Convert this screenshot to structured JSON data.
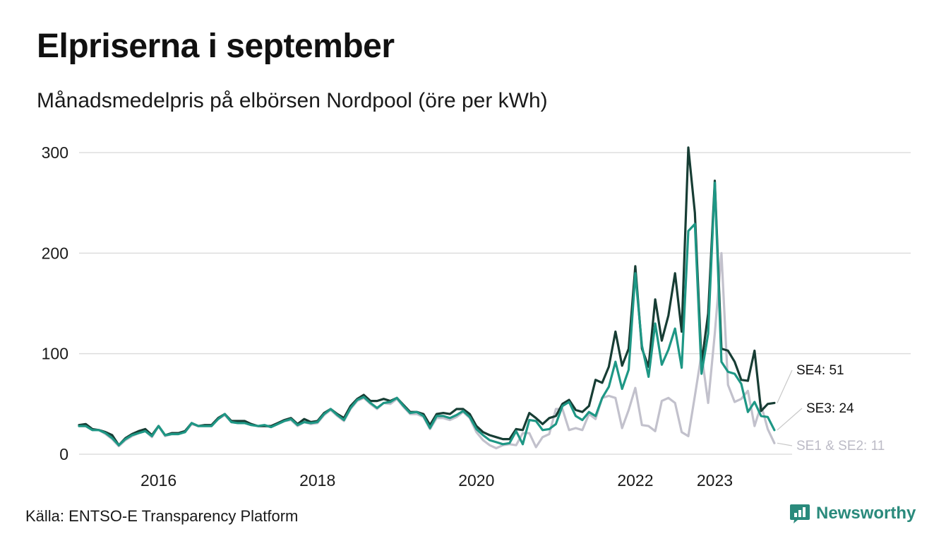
{
  "header": {
    "title": "Elpriserna i september",
    "subtitle": "Månadsmedelpris på elbörsen Nordpool (öre per kWh)"
  },
  "footer": {
    "source": "Källa: ENTSO-E Transparency Platform",
    "brand": "Newsworthy"
  },
  "colors": {
    "se4": "#173d34",
    "se3": "#1e9785",
    "se12": "#c2c1cc",
    "grid": "#dddddd",
    "brand": "#2a8a7c"
  },
  "chart_data": {
    "type": "line",
    "title": "Elpriserna i september",
    "subtitle": "Månadsmedelpris på elbörsen Nordpool (öre per kWh)",
    "xlabel": "",
    "ylabel": "",
    "ylim": [
      0,
      300
    ],
    "xlim": [
      "2015-01",
      "2023-09"
    ],
    "grid": true,
    "y_ticks": [
      0,
      100,
      200,
      300
    ],
    "x_ticks": [
      {
        "label": "2016",
        "month": "2016-01"
      },
      {
        "label": "2018",
        "month": "2018-01"
      },
      {
        "label": "2020",
        "month": "2020-01"
      },
      {
        "label": "2022",
        "month": "2022-01"
      },
      {
        "label": "2023",
        "month": "2023-01"
      }
    ],
    "x_start": "2015-01",
    "x_step": "1 month",
    "series": [
      {
        "name": "SE4",
        "end_label": "SE4: 51",
        "color": "#173d34",
        "values": [
          29,
          30,
          25,
          24,
          22,
          19,
          9,
          16,
          20,
          23,
          25,
          19,
          28,
          19,
          21,
          21,
          23,
          31,
          28,
          29,
          29,
          36,
          40,
          33,
          33,
          33,
          30,
          28,
          28,
          28,
          31,
          34,
          36,
          30,
          35,
          32,
          33,
          41,
          45,
          40,
          36,
          48,
          55,
          59,
          53,
          53,
          55,
          53,
          56,
          49,
          42,
          42,
          40,
          29,
          40,
          41,
          40,
          45,
          45,
          40,
          28,
          22,
          19,
          17,
          15,
          15,
          25,
          24,
          41,
          36,
          30,
          36,
          38,
          50,
          54,
          44,
          42,
          48,
          74,
          71,
          87,
          122,
          88,
          105,
          187,
          105,
          87,
          154,
          113,
          138,
          180,
          122,
          305,
          240,
          90,
          140,
          272,
          105,
          103,
          92,
          74,
          73,
          103,
          43,
          50,
          51
        ]
      },
      {
        "name": "SE3",
        "end_label": "SE3: 24",
        "color": "#1e9785",
        "values": [
          28,
          28,
          24,
          24,
          21,
          16,
          9,
          15,
          19,
          21,
          23,
          18,
          28,
          19,
          20,
          20,
          22,
          31,
          28,
          28,
          28,
          35,
          40,
          32,
          31,
          31,
          29,
          28,
          29,
          27,
          30,
          33,
          35,
          29,
          32,
          31,
          32,
          40,
          45,
          39,
          34,
          46,
          54,
          57,
          51,
          46,
          51,
          52,
          56,
          48,
          41,
          42,
          38,
          26,
          38,
          38,
          36,
          39,
          43,
          37,
          25,
          19,
          14,
          12,
          10,
          11,
          23,
          10,
          34,
          33,
          24,
          25,
          30,
          48,
          52,
          38,
          34,
          42,
          38,
          56,
          67,
          92,
          65,
          84,
          180,
          108,
          77,
          130,
          89,
          104,
          125,
          86,
          222,
          229,
          80,
          120,
          270,
          92,
          82,
          80,
          70,
          42,
          52,
          38,
          37,
          24
        ]
      },
      {
        "name": "SE1 & SE2",
        "end_label": "SE1 & SE2: 11",
        "color": "#c2c1cc",
        "values": [
          28,
          28,
          24,
          24,
          20,
          15,
          8,
          14,
          18,
          21,
          23,
          17,
          28,
          18,
          20,
          20,
          22,
          30,
          28,
          28,
          28,
          35,
          39,
          32,
          31,
          31,
          29,
          28,
          28,
          27,
          30,
          33,
          34,
          28,
          32,
          30,
          31,
          39,
          44,
          38,
          33,
          45,
          53,
          56,
          50,
          45,
          51,
          50,
          55,
          47,
          40,
          40,
          37,
          25,
          36,
          36,
          34,
          37,
          42,
          36,
          22,
          14,
          9,
          6,
          9,
          10,
          9,
          21,
          21,
          7,
          17,
          20,
          45,
          45,
          24,
          26,
          24,
          40,
          35,
          56,
          58,
          56,
          26,
          44,
          66,
          29,
          28,
          23,
          53,
          56,
          51,
          22,
          18,
          58,
          100,
          51,
          120,
          200,
          69,
          52,
          55,
          63,
          28,
          49,
          25,
          11
        ]
      }
    ]
  }
}
